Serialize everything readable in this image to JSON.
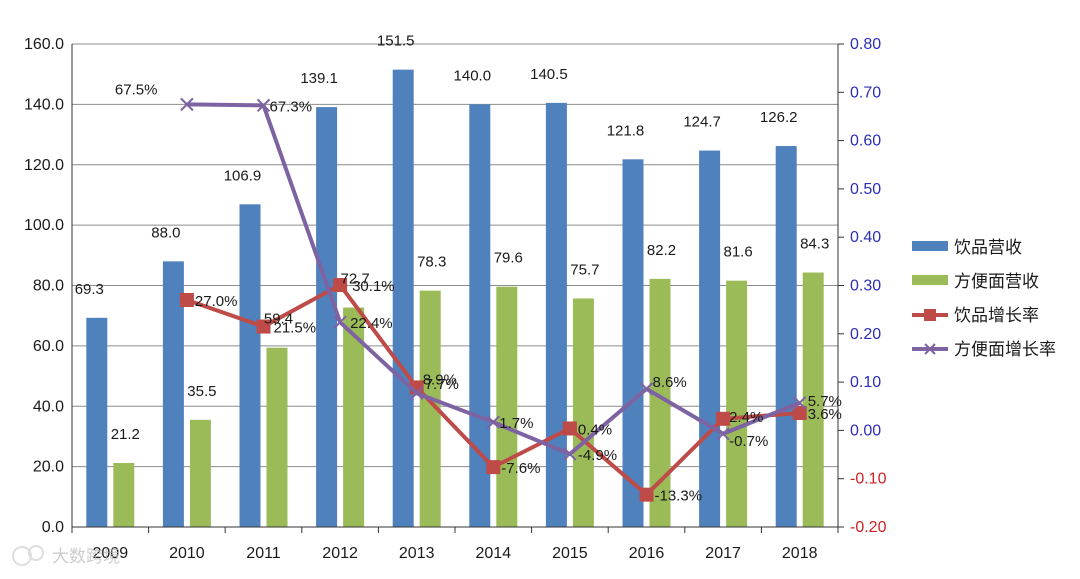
{
  "chart_data": {
    "type": "bar+line",
    "categories": [
      "2009",
      "2010",
      "2011",
      "2012",
      "2013",
      "2014",
      "2015",
      "2016",
      "2017",
      "2018"
    ],
    "series": [
      {
        "name": "饮品营收",
        "kind": "bar",
        "axis": "left",
        "color": "#4f81bd",
        "values": [
          69.3,
          88.0,
          106.9,
          139.1,
          151.5,
          140.0,
          140.5,
          121.8,
          124.7,
          126.2
        ],
        "labels": [
          "69.3",
          "88.0",
          "106.9",
          "139.1",
          "151.5",
          "140.0",
          "140.5",
          "121.8",
          "124.7",
          "126.2"
        ]
      },
      {
        "name": "方便面营收",
        "kind": "bar",
        "axis": "left",
        "color": "#9bbb59",
        "values": [
          21.2,
          35.5,
          59.4,
          72.7,
          78.3,
          79.6,
          75.7,
          82.2,
          81.6,
          84.3
        ],
        "labels": [
          "21.2",
          "35.5",
          "59.4",
          "72.7",
          "78.3",
          "79.6",
          "75.7",
          "82.2",
          "81.6",
          "84.3"
        ]
      },
      {
        "name": "饮品增长率",
        "kind": "line",
        "axis": "right",
        "color": "#be4b48",
        "marker": "square",
        "values": [
          null,
          0.27,
          0.215,
          0.301,
          0.089,
          -0.076,
          0.004,
          -0.133,
          0.024,
          0.036
        ],
        "labels": [
          null,
          "27.0%",
          "21.5%",
          "30.1%",
          "8.9%",
          "-7.6%",
          "0.4%",
          "-13.3%",
          "2.4%",
          "3.6%"
        ]
      },
      {
        "name": "方便面增长率",
        "kind": "line",
        "axis": "right",
        "color": "#7e63a2",
        "marker": "x",
        "values": [
          null,
          0.675,
          0.673,
          0.224,
          0.077,
          0.017,
          -0.049,
          0.086,
          -0.007,
          0.057
        ],
        "labels": [
          null,
          "67.5%",
          "67.3%",
          "22.4%",
          "7.7%",
          "1.7%",
          "-4.9%",
          "8.6%",
          "-0.7%",
          "5.7%"
        ]
      }
    ],
    "y_left": {
      "min": 0,
      "max": 160,
      "step": 20,
      "ticks": [
        "0.0",
        "20.0",
        "40.0",
        "60.0",
        "80.0",
        "100.0",
        "120.0",
        "140.0",
        "160.0"
      ]
    },
    "y_right": {
      "min": -0.2,
      "max": 0.8,
      "step": 0.1,
      "ticks": [
        "-0.20",
        "-0.10",
        "0.00",
        "0.10",
        "0.20",
        "0.30",
        "0.40",
        "0.50",
        "0.60",
        "0.70",
        "0.80"
      ],
      "positive_color": "#2e2eb8",
      "negative_color": "#cc2222"
    },
    "grid": "horizontal",
    "legend_position": "right",
    "title": ""
  },
  "watermark": {
    "text": "大数跨境"
  }
}
